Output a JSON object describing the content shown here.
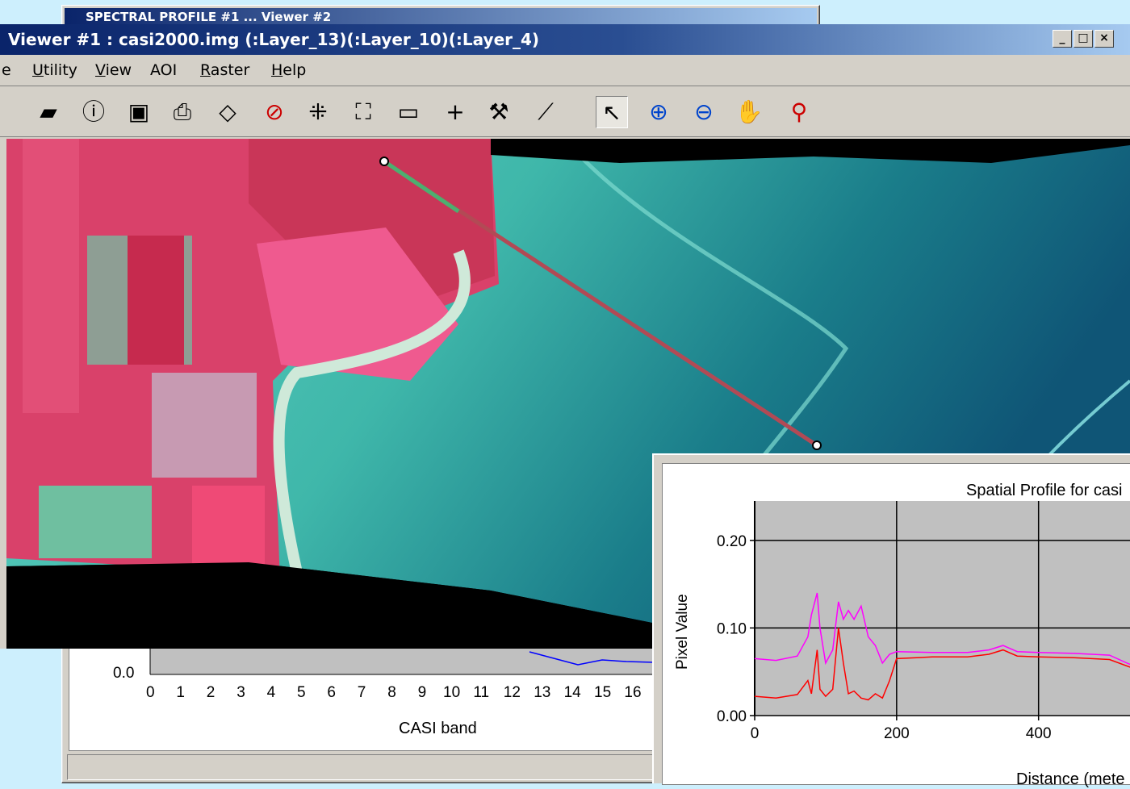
{
  "back_window": {
    "title": "SPECTRAL PROFILE #1 ... Viewer #2",
    "chart": {
      "y_tick": "0.0",
      "x_ticks": [
        "0",
        "1",
        "2",
        "3",
        "4",
        "5",
        "6",
        "7",
        "8",
        "9",
        "10",
        "11",
        "12",
        "13",
        "14",
        "15",
        "16"
      ],
      "xlabel": "CASI band"
    }
  },
  "viewer": {
    "title": "Viewer #1 : casi2000.img (:Layer_13)(:Layer_10)(:Layer_4)",
    "controls": [
      "_",
      "□",
      "×"
    ],
    "menu": [
      {
        "label": "e",
        "mnemonic": ""
      },
      {
        "label": "tility",
        "mnemonic": "U"
      },
      {
        "label": "iew",
        "mnemonic": "V"
      },
      {
        "label": "AOI",
        "mnemonic": ""
      },
      {
        "label": "aster",
        "mnemonic": "R"
      },
      {
        "label": "elp",
        "mnemonic": "H"
      }
    ],
    "toolbar_icons": [
      "open-layer-icon",
      "info-icon",
      "save-icon",
      "print-icon",
      "eraser-icon",
      "edit-icon",
      "clear-icon",
      "zoom-fit-icon",
      "zoom-extent-icon",
      "ruler-icon",
      "crosshair-icon",
      "hammer-icon",
      "profile-tool-icon",
      "select-arrow-icon",
      "zoom-in-icon",
      "zoom-out-icon",
      "pan-hand-icon",
      "pin-icon"
    ]
  },
  "profile_window": {
    "title": "Spatial Profile for casi",
    "colors": {
      "series_a": "#ff00ff",
      "series_b": "#ff0000",
      "plot_bg": "#c0c0c0"
    }
  },
  "chart_data": {
    "type": "line",
    "title": "Spatial Profile for casi",
    "xlabel": "Distance (mete",
    "ylabel": "Pixel Value",
    "x_ticks": [
      "0",
      "200",
      "400"
    ],
    "y_ticks": [
      "0.00",
      "0.10",
      "0.20"
    ],
    "xlim": [
      0,
      530
    ],
    "ylim": [
      0,
      0.245
    ],
    "grid": true,
    "series": [
      {
        "color": "#ff00ff",
        "x": [
          0,
          30,
          60,
          75,
          80,
          88,
          92,
          100,
          110,
          118,
          125,
          132,
          140,
          150,
          160,
          170,
          180,
          190,
          200,
          250,
          300,
          330,
          350,
          370,
          400,
          450,
          500,
          530
        ],
        "y": [
          0.065,
          0.063,
          0.068,
          0.09,
          0.115,
          0.14,
          0.1,
          0.06,
          0.075,
          0.13,
          0.11,
          0.12,
          0.11,
          0.125,
          0.09,
          0.08,
          0.06,
          0.07,
          0.073,
          0.072,
          0.072,
          0.075,
          0.08,
          0.073,
          0.072,
          0.071,
          0.069,
          0.058
        ]
      },
      {
        "color": "#ff0000",
        "x": [
          0,
          30,
          60,
          75,
          80,
          88,
          92,
          100,
          110,
          118,
          125,
          132,
          140,
          150,
          160,
          170,
          180,
          190,
          200,
          250,
          300,
          330,
          350,
          370,
          400,
          450,
          500,
          530
        ],
        "y": [
          0.022,
          0.02,
          0.024,
          0.04,
          0.025,
          0.075,
          0.03,
          0.022,
          0.03,
          0.1,
          0.06,
          0.025,
          0.028,
          0.02,
          0.018,
          0.025,
          0.02,
          0.04,
          0.065,
          0.067,
          0.067,
          0.07,
          0.075,
          0.068,
          0.067,
          0.066,
          0.064,
          0.055
        ]
      }
    ]
  }
}
